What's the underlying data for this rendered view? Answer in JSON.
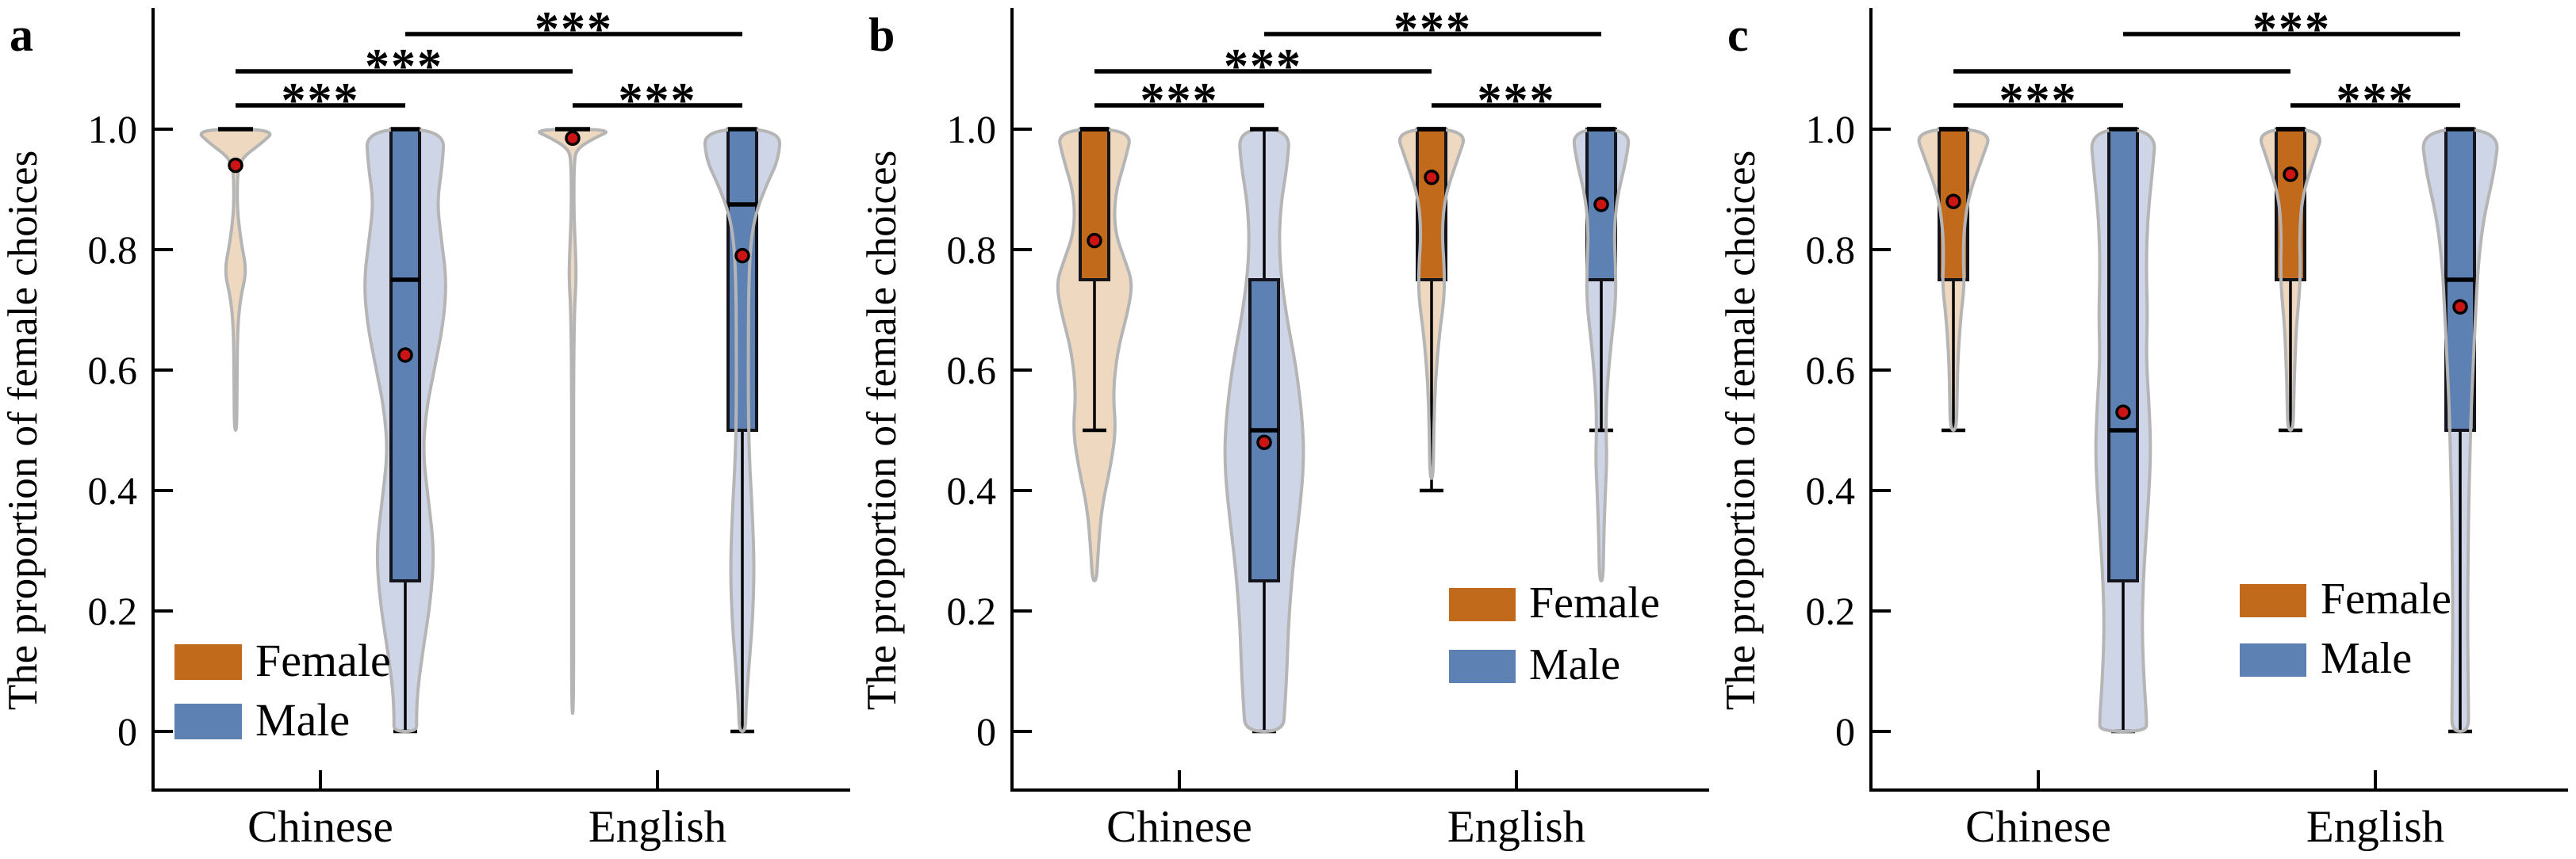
{
  "chart_data": {
    "type": "grouped-violin-box",
    "title": "",
    "ylabel": "The proportion of female choices",
    "ylim": [
      -0.12,
      1.18
    ],
    "grid": false,
    "yticks": [
      {
        "v": 1.0,
        "label": "1.0"
      },
      {
        "v": 0.8,
        "label": "0.8"
      },
      {
        "v": 0.6,
        "label": "0.6"
      },
      {
        "v": 0.4,
        "label": "0.4"
      },
      {
        "v": 0.2,
        "label": "0.2"
      },
      {
        "v": 0.0,
        "label": "0"
      }
    ],
    "categories": [
      "Chinese",
      "English"
    ],
    "series": [
      {
        "name": "Female",
        "box_color": "#c16a1c",
        "violin_color": "#eed9c0"
      },
      {
        "name": "Male",
        "box_color": "#5e81b4",
        "violin_color": "#cdd5e6"
      }
    ],
    "style": {
      "violin_stroke": "#b5b5b5",
      "box_edge": "#14141c",
      "median_color": "#000000",
      "whisker_color": "#000000",
      "mean_fill": "#cc1414",
      "mean_edge": "#000000",
      "axis_color": "#000000",
      "sig_color": "#000000",
      "background": "#ffffff"
    },
    "panels": [
      {
        "label": "a",
        "legend_position": "bottom-left",
        "groups": [
          {
            "category": "Chinese",
            "series": "Female",
            "stats": {
              "median": 1.0,
              "q1": 1.0,
              "q3": 1.0,
              "mean": 0.94,
              "whisker_low": null,
              "whisker_high": null
            },
            "violin": [
              [
                1.0,
                1.0
              ],
              [
                0.975,
                0.6
              ],
              [
                0.955,
                0.2
              ],
              [
                0.935,
                0.06
              ],
              [
                0.9,
                0.04
              ],
              [
                0.86,
                0.05
              ],
              [
                0.81,
                0.14
              ],
              [
                0.765,
                0.27
              ],
              [
                0.72,
                0.12
              ],
              [
                0.67,
                0.05
              ],
              [
                0.58,
                0.035
              ],
              [
                0.5,
                0.03
              ]
            ]
          },
          {
            "category": "Chinese",
            "series": "Male",
            "stats": {
              "median": 0.75,
              "q1": 0.25,
              "q3": 1.0,
              "mean": 0.625,
              "whisker_low": 0.0,
              "whisker_high": 1.0
            },
            "violin": [
              [
                1.0,
                0.95
              ],
              [
                0.94,
                0.9
              ],
              [
                0.88,
                0.77
              ],
              [
                0.82,
                0.87
              ],
              [
                0.75,
                1.0
              ],
              [
                0.68,
                0.93
              ],
              [
                0.6,
                0.7
              ],
              [
                0.53,
                0.5
              ],
              [
                0.46,
                0.43
              ],
              [
                0.38,
                0.57
              ],
              [
                0.3,
                0.7
              ],
              [
                0.22,
                0.62
              ],
              [
                0.14,
                0.44
              ],
              [
                0.07,
                0.3
              ],
              [
                0.02,
                0.27
              ],
              [
                0.0,
                0.28
              ]
            ]
          },
          {
            "category": "English",
            "series": "Female",
            "stats": {
              "median": 1.0,
              "q1": 1.0,
              "q3": 1.0,
              "mean": 0.985,
              "whisker_low": null,
              "whisker_high": null
            },
            "violin": [
              [
                1.0,
                1.0
              ],
              [
                0.985,
                0.52
              ],
              [
                0.968,
                0.12
              ],
              [
                0.95,
                0.035
              ],
              [
                0.86,
                0.03
              ],
              [
                0.79,
                0.075
              ],
              [
                0.75,
                0.085
              ],
              [
                0.7,
                0.045
              ],
              [
                0.6,
                0.025
              ],
              [
                0.45,
                0.02
              ],
              [
                0.25,
                0.018
              ],
              [
                0.03,
                0.015
              ]
            ]
          },
          {
            "category": "English",
            "series": "Male",
            "stats": {
              "median": 0.875,
              "q1": 0.5,
              "q3": 1.0,
              "mean": 0.79,
              "whisker_low": 0.0,
              "whisker_high": 1.0
            },
            "violin": [
              [
                1.0,
                0.93
              ],
              [
                0.95,
                0.88
              ],
              [
                0.91,
                0.6
              ],
              [
                0.86,
                0.32
              ],
              [
                0.81,
                0.2
              ],
              [
                0.74,
                0.155
              ],
              [
                0.65,
                0.145
              ],
              [
                0.55,
                0.145
              ],
              [
                0.46,
                0.165
              ],
              [
                0.36,
                0.245
              ],
              [
                0.27,
                0.29
              ],
              [
                0.18,
                0.245
              ],
              [
                0.1,
                0.15
              ],
              [
                0.04,
                0.09
              ],
              [
                0.0,
                0.075
              ]
            ]
          }
        ],
        "significance": [
          {
            "between": [
              0,
              1
            ],
            "level": 1,
            "label": "***"
          },
          {
            "between": [
              2,
              3
            ],
            "level": 1,
            "label": "***"
          },
          {
            "between": [
              0,
              2
            ],
            "level": 2,
            "label": "***"
          },
          {
            "between": [
              1,
              3
            ],
            "level": 3,
            "label": "***"
          }
        ]
      },
      {
        "label": "b",
        "legend_position": "bottom-right",
        "groups": [
          {
            "category": "Chinese",
            "series": "Female",
            "stats": {
              "median": 1.0,
              "q1": 0.75,
              "q3": 1.0,
              "mean": 0.815,
              "whisker_low": 0.5,
              "whisker_high": 1.0
            },
            "violin": [
              [
                1.0,
                0.92
              ],
              [
                0.95,
                0.75
              ],
              [
                0.89,
                0.49
              ],
              [
                0.83,
                0.49
              ],
              [
                0.78,
                0.75
              ],
              [
                0.745,
                0.92
              ],
              [
                0.7,
                0.82
              ],
              [
                0.63,
                0.55
              ],
              [
                0.56,
                0.45
              ],
              [
                0.5,
                0.52
              ],
              [
                0.44,
                0.39
              ],
              [
                0.37,
                0.17
              ],
              [
                0.3,
                0.09
              ],
              [
                0.25,
                0.05
              ]
            ]
          },
          {
            "category": "Chinese",
            "series": "Male",
            "stats": {
              "median": 0.5,
              "q1": 0.25,
              "q3": 0.75,
              "mean": 0.48,
              "whisker_low": 0.0,
              "whisker_high": 1.0
            },
            "violin": [
              [
                1.0,
                0.62
              ],
              [
                0.94,
                0.56
              ],
              [
                0.87,
                0.39
              ],
              [
                0.79,
                0.36
              ],
              [
                0.7,
                0.51
              ],
              [
                0.6,
                0.79
              ],
              [
                0.5,
                0.95
              ],
              [
                0.43,
                0.95
              ],
              [
                0.35,
                0.83
              ],
              [
                0.27,
                0.69
              ],
              [
                0.18,
                0.59
              ],
              [
                0.1,
                0.55
              ],
              [
                0.04,
                0.5
              ],
              [
                0.0,
                0.46
              ]
            ]
          },
          {
            "category": "English",
            "series": "Female",
            "stats": {
              "median": 1.0,
              "q1": 0.75,
              "q3": 1.0,
              "mean": 0.92,
              "whisker_low": 0.4,
              "whisker_high": 1.0
            },
            "violin": [
              [
                1.0,
                0.88
              ],
              [
                0.95,
                0.63
              ],
              [
                0.89,
                0.33
              ],
              [
                0.83,
                0.25
              ],
              [
                0.77,
                0.31
              ],
              [
                0.72,
                0.31
              ],
              [
                0.66,
                0.19
              ],
              [
                0.58,
                0.09
              ],
              [
                0.5,
                0.055
              ],
              [
                0.42,
                0.04
              ]
            ]
          },
          {
            "category": "English",
            "series": "Male",
            "stats": {
              "median": 1.0,
              "q1": 0.75,
              "q3": 1.0,
              "mean": 0.875,
              "whisker_low": 0.5,
              "whisker_high": 1.0
            },
            "violin": [
              [
                1.0,
                0.7
              ],
              [
                0.95,
                0.61
              ],
              [
                0.89,
                0.39
              ],
              [
                0.83,
                0.31
              ],
              [
                0.77,
                0.35
              ],
              [
                0.71,
                0.35
              ],
              [
                0.64,
                0.23
              ],
              [
                0.56,
                0.13
              ],
              [
                0.5,
                0.115
              ],
              [
                0.45,
                0.135
              ],
              [
                0.4,
                0.1
              ],
              [
                0.32,
                0.06
              ],
              [
                0.25,
                0.045
              ]
            ]
          }
        ],
        "significance": [
          {
            "between": [
              0,
              1
            ],
            "level": 1,
            "label": "***"
          },
          {
            "between": [
              2,
              3
            ],
            "level": 1,
            "label": "***"
          },
          {
            "between": [
              0,
              2
            ],
            "level": 2,
            "label": "***"
          },
          {
            "between": [
              1,
              3
            ],
            "level": 3,
            "label": "***"
          }
        ]
      },
      {
        "label": "c",
        "legend_position": "bottom-right",
        "groups": [
          {
            "category": "Chinese",
            "series": "Female",
            "stats": {
              "median": 1.0,
              "q1": 0.75,
              "q3": 1.0,
              "mean": 0.88,
              "whisker_low": 0.5,
              "whisker_high": 1.0
            },
            "violin": [
              [
                1.0,
                0.95
              ],
              [
                0.95,
                0.69
              ],
              [
                0.89,
                0.37
              ],
              [
                0.83,
                0.25
              ],
              [
                0.78,
                0.24
              ],
              [
                0.74,
                0.265
              ],
              [
                0.69,
                0.18
              ],
              [
                0.62,
                0.11
              ],
              [
                0.56,
                0.09
              ],
              [
                0.5,
                0.075
              ]
            ]
          },
          {
            "category": "Chinese",
            "series": "Male",
            "stats": {
              "median": 0.5,
              "q1": 0.25,
              "q3": 1.0,
              "mean": 0.53,
              "whisker_low": 0.0,
              "whisker_high": 1.0
            },
            "violin": [
              [
                1.0,
                0.8
              ],
              [
                0.93,
                0.71
              ],
              [
                0.85,
                0.59
              ],
              [
                0.77,
                0.56
              ],
              [
                0.69,
                0.59
              ],
              [
                0.62,
                0.56
              ],
              [
                0.54,
                0.63
              ],
              [
                0.47,
                0.67
              ],
              [
                0.4,
                0.63
              ],
              [
                0.32,
                0.55
              ],
              [
                0.24,
                0.48
              ],
              [
                0.16,
                0.46
              ],
              [
                0.08,
                0.51
              ],
              [
                0.02,
                0.57
              ],
              [
                0.0,
                0.56
              ]
            ]
          },
          {
            "category": "English",
            "series": "Female",
            "stats": {
              "median": 1.0,
              "q1": 0.75,
              "q3": 1.0,
              "mean": 0.925,
              "whisker_low": 0.5,
              "whisker_high": 1.0
            },
            "violin": [
              [
                1.0,
                0.82
              ],
              [
                0.95,
                0.57
              ],
              [
                0.89,
                0.29
              ],
              [
                0.83,
                0.22
              ],
              [
                0.77,
                0.24
              ],
              [
                0.73,
                0.22
              ],
              [
                0.67,
                0.14
              ],
              [
                0.6,
                0.1
              ],
              [
                0.55,
                0.08
              ],
              [
                0.5,
                0.065
              ]
            ]
          },
          {
            "category": "English",
            "series": "Male",
            "stats": {
              "median": 0.75,
              "q1": 0.5,
              "q3": 1.0,
              "mean": 0.705,
              "whisker_low": 0.0,
              "whisker_high": 1.0
            },
            "violin": [
              [
                1.0,
                0.95
              ],
              [
                0.93,
                0.83
              ],
              [
                0.85,
                0.56
              ],
              [
                0.77,
                0.43
              ],
              [
                0.7,
                0.38
              ],
              [
                0.62,
                0.32
              ],
              [
                0.54,
                0.27
              ],
              [
                0.46,
                0.235
              ],
              [
                0.37,
                0.205
              ],
              [
                0.28,
                0.19
              ],
              [
                0.19,
                0.18
              ],
              [
                0.1,
                0.19
              ],
              [
                0.04,
                0.2
              ],
              [
                0.0,
                0.2
              ]
            ]
          }
        ],
        "significance": [
          {
            "between": [
              0,
              1
            ],
            "level": 1,
            "label": "***"
          },
          {
            "between": [
              2,
              3
            ],
            "level": 1,
            "label": "***"
          },
          {
            "between": [
              0,
              2
            ],
            "level": 2,
            "label": ""
          },
          {
            "between": [
              1,
              3
            ],
            "level": 3,
            "label": "***"
          }
        ]
      }
    ]
  }
}
